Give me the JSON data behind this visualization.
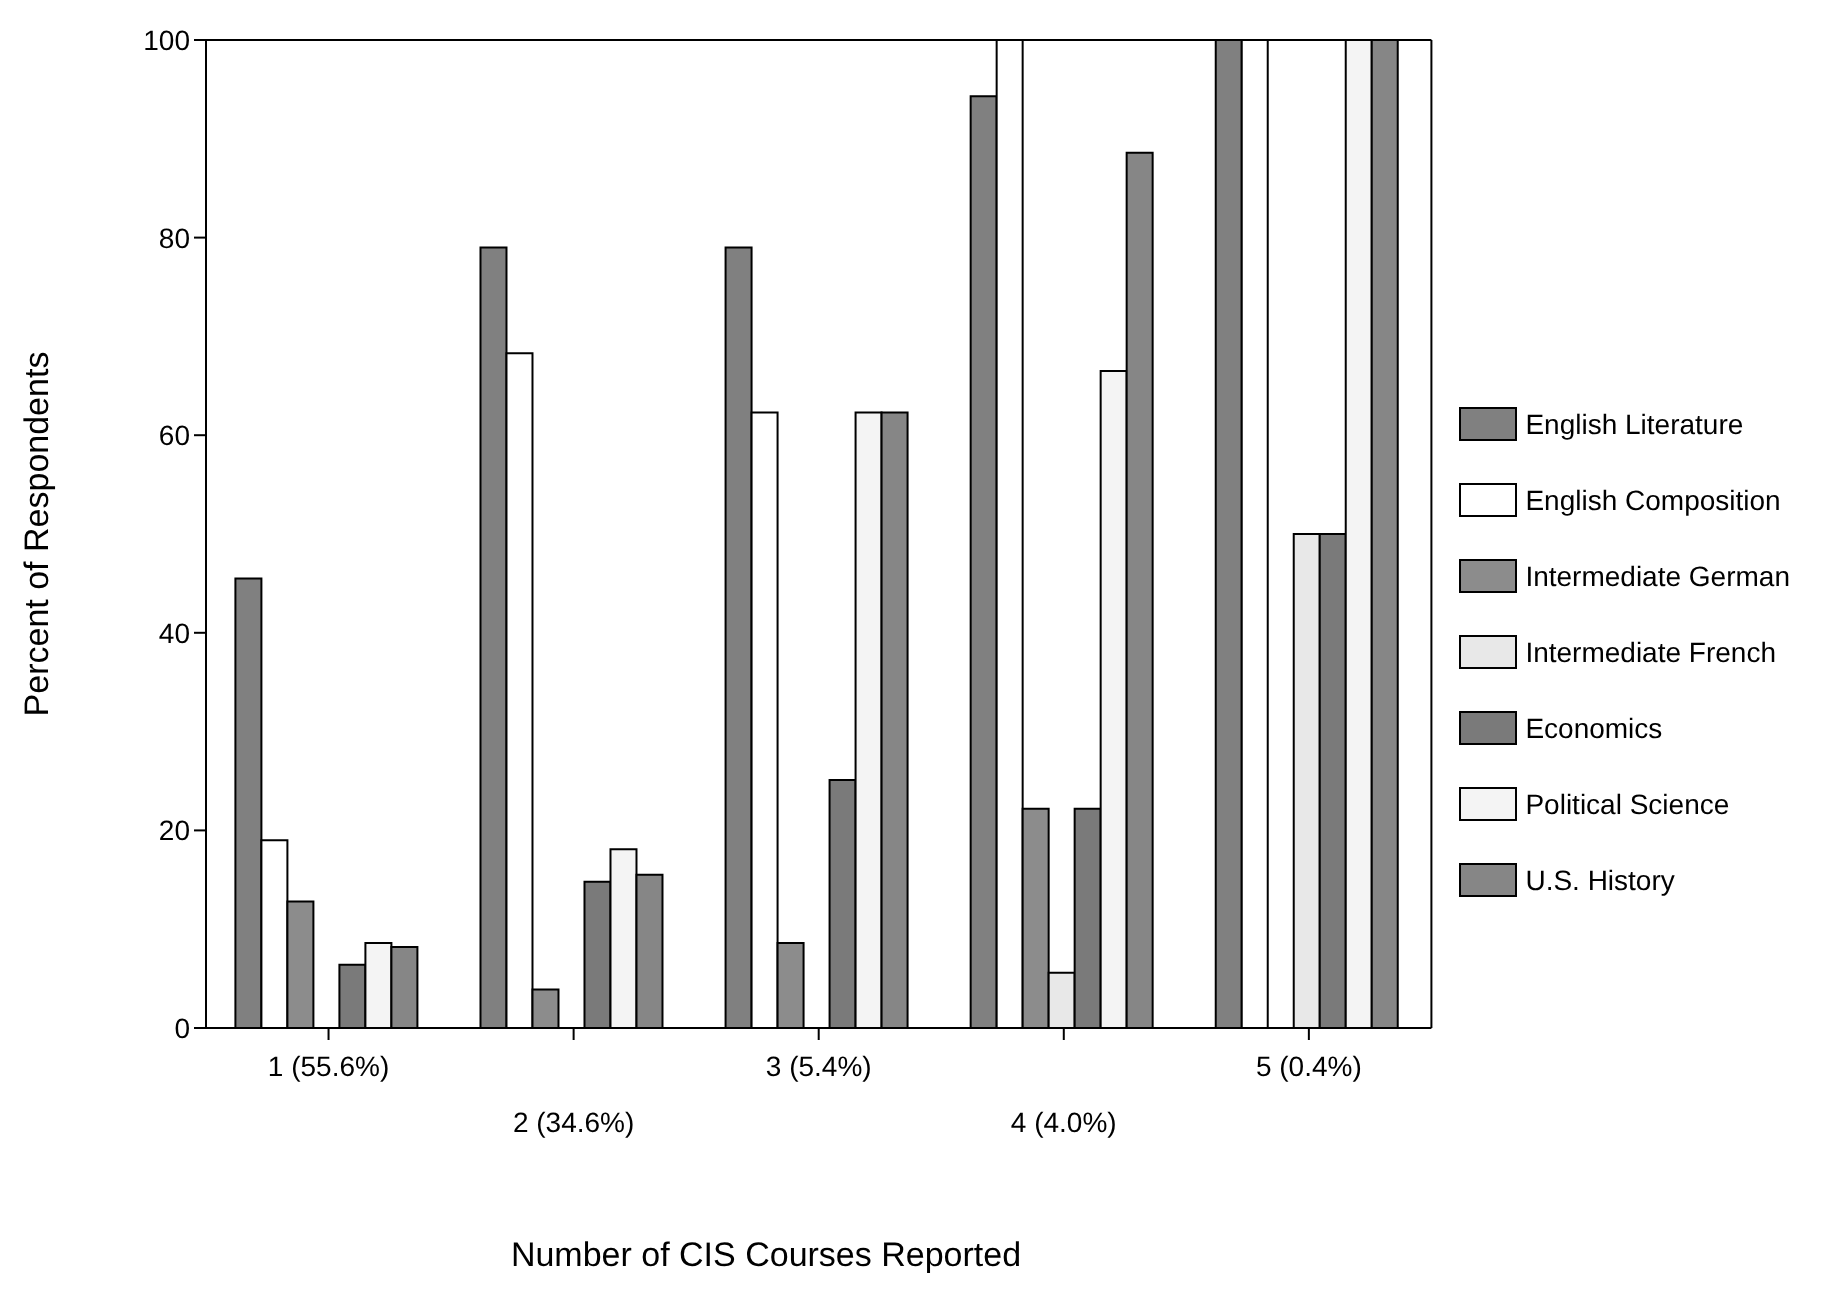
{
  "chart_data": {
    "type": "bar",
    "xlabel": "Number of CIS Courses Reported",
    "ylabel": "Percent of Respondents",
    "categories": [
      "1 (55.6%)",
      "2 (34.6%)",
      "3 (5.4%)",
      "4 (4.0%)",
      "5 (0.4%)"
    ],
    "series": [
      {
        "name": "English Literature",
        "color": "#808080",
        "values": [
          45.5,
          79,
          79,
          94.3,
          100
        ]
      },
      {
        "name": "English Composition",
        "color": "#ffffff",
        "values": [
          19,
          68.3,
          62.3,
          100,
          100
        ]
      },
      {
        "name": "Intermediate German",
        "color": "#8c8c8c",
        "values": [
          12.8,
          3.9,
          8.6,
          22.2,
          null
        ]
      },
      {
        "name": "Intermediate French",
        "color": "#e8e8e8",
        "values": [
          null,
          null,
          null,
          5.6,
          50
        ]
      },
      {
        "name": "Economics",
        "color": "#7a7a7a",
        "values": [
          6.4,
          14.8,
          25.1,
          22.2,
          50
        ]
      },
      {
        "name": "Political Science",
        "color": "#f4f4f4",
        "values": [
          8.6,
          18.1,
          62.3,
          66.5,
          100
        ]
      },
      {
        "name": "U.S. History",
        "color": "#868686",
        "values": [
          8.2,
          15.5,
          62.3,
          88.6,
          100
        ]
      }
    ],
    "ylim": [
      0,
      100
    ],
    "yticks": [
      0,
      20,
      40,
      60,
      80,
      100
    ],
    "legend": "right"
  }
}
